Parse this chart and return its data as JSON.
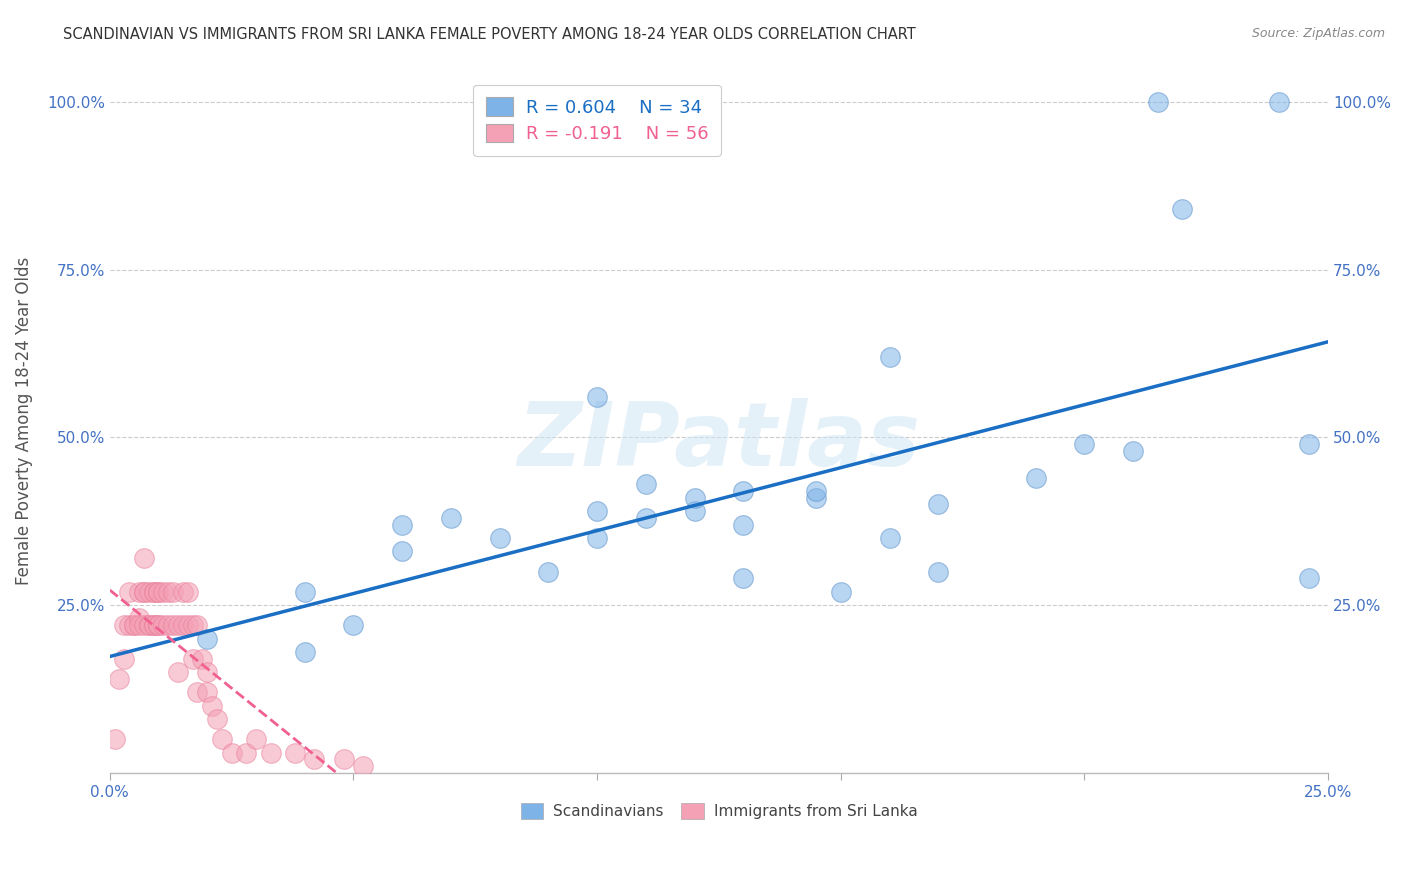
{
  "title": "SCANDINAVIAN VS IMMIGRANTS FROM SRI LANKA FEMALE POVERTY AMONG 18-24 YEAR OLDS CORRELATION CHART",
  "source": "Source: ZipAtlas.com",
  "ylabel": "Female Poverty Among 18-24 Year Olds",
  "xlim": [
    0.0,
    0.25
  ],
  "ylim": [
    0.0,
    1.05
  ],
  "yticks": [
    0.0,
    0.25,
    0.5,
    0.75,
    1.0
  ],
  "ytick_labels_left": [
    "",
    "25.0%",
    "50.0%",
    "75.0%",
    "100.0%"
  ],
  "ytick_labels_right": [
    "",
    "25.0%",
    "50.0%",
    "75.0%",
    "100.0%"
  ],
  "xticks": [
    0.0,
    0.05,
    0.1,
    0.15,
    0.2,
    0.25
  ],
  "xtick_labels": [
    "0.0%",
    "",
    "",
    "",
    "",
    "25.0%"
  ],
  "legend_r_scand": "R = 0.604",
  "legend_n_scand": "N = 34",
  "legend_r_srilanka": "R = -0.191",
  "legend_n_srilanka": "N = 56",
  "scand_color": "#7eb3e8",
  "srilanka_color": "#f4a0b5",
  "scand_line_color": "#1a6fc4",
  "srilanka_line_color": "#f06090",
  "watermark": "ZIPatlas",
  "scand_x": [
    0.02,
    0.04,
    0.04,
    0.05,
    0.06,
    0.06,
    0.07,
    0.08,
    0.09,
    0.1,
    0.1,
    0.1,
    0.11,
    0.11,
    0.12,
    0.12,
    0.13,
    0.13,
    0.13,
    0.145,
    0.145,
    0.15,
    0.16,
    0.17,
    0.17,
    0.19,
    0.2,
    0.21,
    0.215,
    0.22,
    0.24,
    0.246,
    0.246,
    0.16
  ],
  "scand_y": [
    0.2,
    0.18,
    0.27,
    0.22,
    0.33,
    0.37,
    0.38,
    0.35,
    0.3,
    0.35,
    0.39,
    0.56,
    0.38,
    0.43,
    0.39,
    0.41,
    0.42,
    0.37,
    0.29,
    0.41,
    0.42,
    0.27,
    0.35,
    0.4,
    0.3,
    0.44,
    0.49,
    0.48,
    1.0,
    0.84,
    1.0,
    0.49,
    0.29,
    0.62
  ],
  "srilanka_x": [
    0.001,
    0.002,
    0.003,
    0.003,
    0.004,
    0.004,
    0.005,
    0.005,
    0.006,
    0.006,
    0.006,
    0.007,
    0.007,
    0.007,
    0.007,
    0.008,
    0.008,
    0.008,
    0.009,
    0.009,
    0.009,
    0.009,
    0.01,
    0.01,
    0.01,
    0.01,
    0.011,
    0.011,
    0.012,
    0.012,
    0.013,
    0.013,
    0.014,
    0.014,
    0.015,
    0.015,
    0.016,
    0.016,
    0.017,
    0.017,
    0.018,
    0.018,
    0.019,
    0.02,
    0.02,
    0.021,
    0.022,
    0.023,
    0.025,
    0.028,
    0.03,
    0.033,
    0.038,
    0.042,
    0.048,
    0.052
  ],
  "srilanka_y": [
    0.05,
    0.14,
    0.22,
    0.17,
    0.27,
    0.22,
    0.22,
    0.22,
    0.23,
    0.27,
    0.22,
    0.27,
    0.27,
    0.22,
    0.32,
    0.22,
    0.27,
    0.22,
    0.22,
    0.27,
    0.22,
    0.27,
    0.22,
    0.27,
    0.22,
    0.27,
    0.27,
    0.22,
    0.22,
    0.27,
    0.27,
    0.22,
    0.22,
    0.15,
    0.22,
    0.27,
    0.27,
    0.22,
    0.17,
    0.22,
    0.12,
    0.22,
    0.17,
    0.15,
    0.12,
    0.1,
    0.08,
    0.05,
    0.03,
    0.03,
    0.05,
    0.03,
    0.03,
    0.02,
    0.02,
    0.01
  ],
  "bg_color": "#ffffff",
  "grid_color": "#cccccc",
  "tick_color": "#4472c4",
  "title_color": "#333333",
  "source_color": "#888888",
  "ylabel_color": "#555555"
}
